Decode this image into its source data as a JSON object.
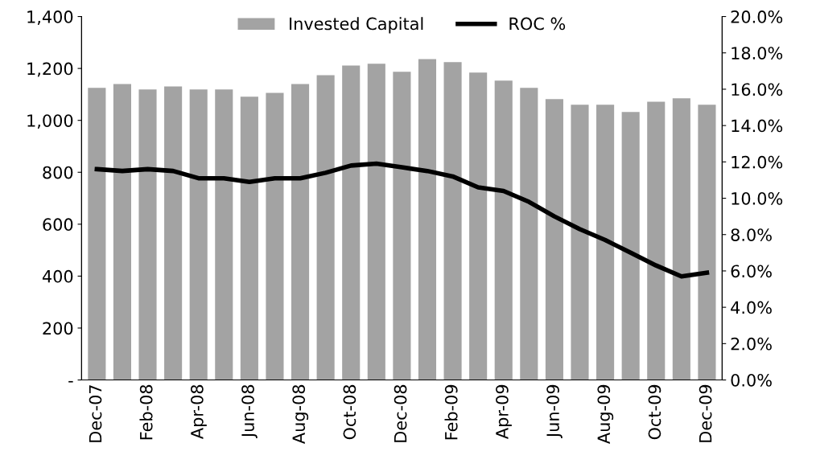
{
  "chart_data": {
    "type": "bar",
    "categories": [
      "Dec-07",
      null,
      "Feb-08",
      null,
      "Apr-08",
      null,
      "Jun-08",
      null,
      "Aug-08",
      null,
      "Oct-08",
      null,
      "Dec-08",
      null,
      "Feb-09",
      null,
      "Apr-09",
      null,
      "Jun-09",
      null,
      "Aug-09",
      null,
      "Oct-09",
      null,
      "Dec-09"
    ],
    "series": [
      {
        "name": "Invested Capital",
        "color": "#a3a3a3",
        "values": [
          1125,
          1140,
          1119,
          1131,
          1119,
          1119,
          1091,
          1106,
          1140,
          1174,
          1211,
          1218,
          1187,
          1236,
          1224,
          1184,
          1153,
          1125,
          1082,
          1060,
          1060,
          1032,
          1072,
          1085,
          1060
        ]
      },
      {
        "name": "ROC %",
        "type": "line",
        "axis": "y2",
        "color": "#000000",
        "values": [
          11.6,
          11.5,
          11.6,
          11.5,
          11.1,
          11.1,
          10.9,
          11.1,
          11.1,
          11.4,
          11.8,
          11.9,
          11.7,
          11.5,
          11.2,
          10.6,
          10.4,
          9.8,
          9.0,
          8.3,
          7.7,
          7.0,
          6.3,
          5.7,
          5.9
        ]
      }
    ],
    "ylim": [
      0,
      1400
    ],
    "yticks": [
      {
        "value": 0,
        "label": "-"
      },
      {
        "value": 200,
        "label": "200"
      },
      {
        "value": 400,
        "label": "400"
      },
      {
        "value": 600,
        "label": "600"
      },
      {
        "value": 800,
        "label": "800"
      },
      {
        "value": 1000,
        "label": "1,000"
      },
      {
        "value": 1200,
        "label": "1,200"
      },
      {
        "value": 1400,
        "label": "1,400"
      }
    ],
    "y2lim": [
      0,
      20
    ],
    "y2ticks": [
      {
        "value": 0,
        "label": "0.0%"
      },
      {
        "value": 2,
        "label": "2.0%"
      },
      {
        "value": 4,
        "label": "4.0%"
      },
      {
        "value": 6,
        "label": "6.0%"
      },
      {
        "value": 8,
        "label": "8.0%"
      },
      {
        "value": 10,
        "label": "10.0%"
      },
      {
        "value": 12,
        "label": "12.0%"
      },
      {
        "value": 14,
        "label": "14.0%"
      },
      {
        "value": 16,
        "label": "16.0%"
      },
      {
        "value": 18,
        "label": "18.0%"
      },
      {
        "value": 20,
        "label": "20.0%"
      }
    ],
    "legend": "top",
    "grid": false,
    "marker": "none",
    "line_style": "solid"
  }
}
